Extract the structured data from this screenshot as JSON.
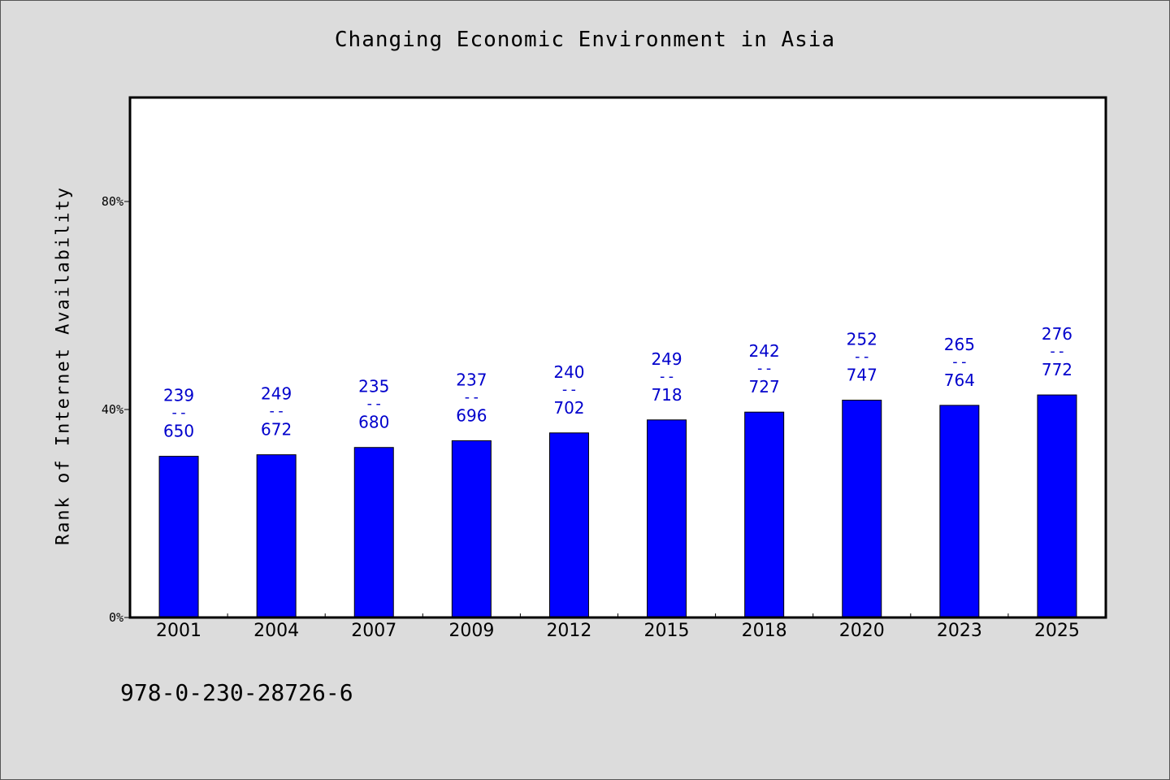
{
  "chart_data": {
    "type": "bar",
    "title": "Changing Economic Environment in Asia",
    "xlabel": "",
    "ylabel": "Rank of Internet Availability",
    "ylim": [
      0,
      100
    ],
    "yticks": [
      0,
      40,
      80
    ],
    "ytick_labels": [
      "0%",
      "40%",
      "80%"
    ],
    "categories": [
      "2001",
      "2004",
      "2007",
      "2009",
      "2012",
      "2015",
      "2018",
      "2020",
      "2023",
      "2025"
    ],
    "values": [
      31,
      31.3,
      32.7,
      34,
      35.5,
      38,
      39.5,
      41.8,
      40.8,
      42.8
    ],
    "label_top": [
      "239",
      "249",
      "235",
      "237",
      "240",
      "249",
      "242",
      "252",
      "265",
      "276"
    ],
    "label_sep": "--",
    "label_bottom": [
      "650",
      "672",
      "680",
      "696",
      "702",
      "718",
      "727",
      "747",
      "764",
      "772"
    ],
    "bar_color": "#0000ff",
    "label_color": "#0000cc",
    "background_color": "#dcdcdc",
    "plot_background": "#ffffff",
    "grid": false,
    "legend": "none"
  },
  "footer": {
    "isbn": "978-0-230-28726-6"
  }
}
